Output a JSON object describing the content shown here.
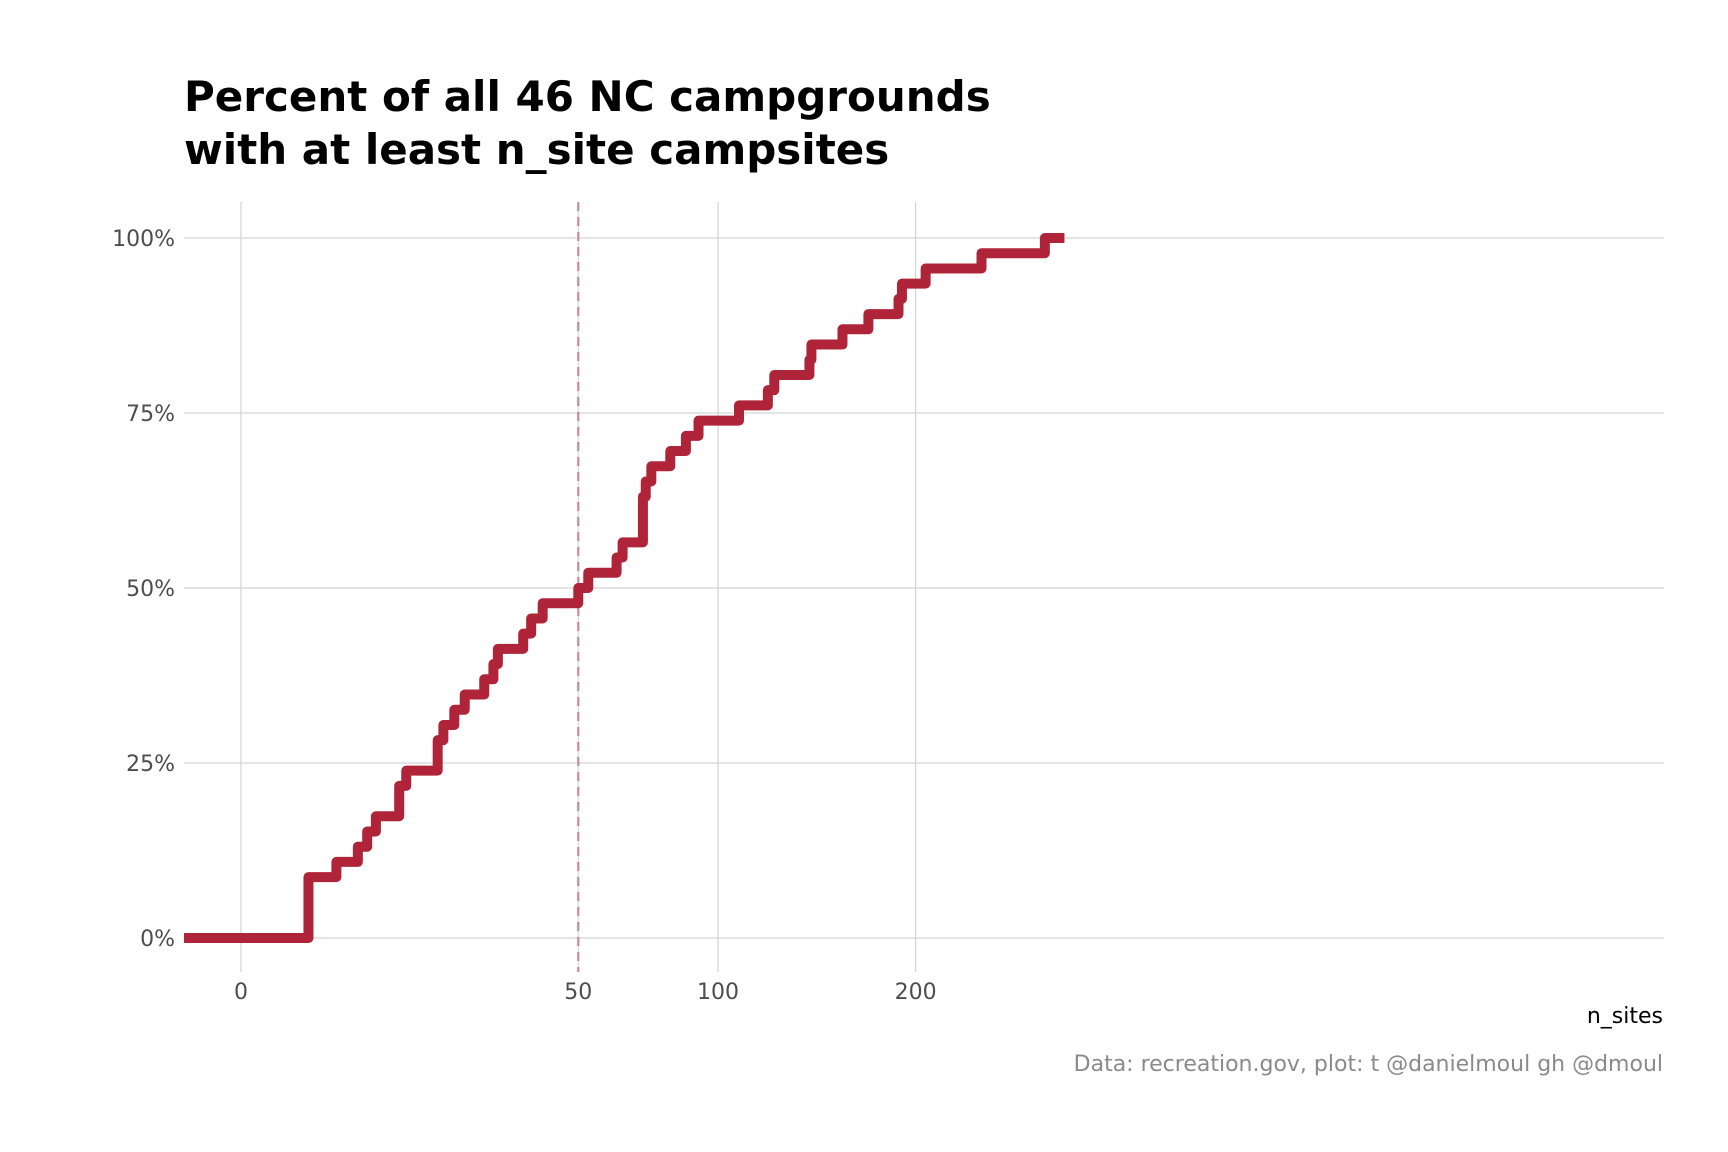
{
  "chart_data": {
    "type": "line",
    "step": true,
    "title_lines": [
      "Percent of all 46 NC campgrounds",
      "with at least n_site campsites"
    ],
    "xlabel": "n_sites",
    "ylabel": "",
    "caption": "Data: recreation.gov, plot: t @danielmoul gh @dmoul",
    "x_ticks": [
      0,
      50,
      100,
      200
    ],
    "y_ticks": [
      0,
      0.25,
      0.5,
      0.75,
      1.0
    ],
    "y_tick_labels": [
      "0%",
      "25%",
      "50%",
      "75%",
      "100%"
    ],
    "ylim": [
      -0.045,
      1.05
    ],
    "grid": true,
    "reference_line": {
      "x": 50,
      "style": "dashed"
    },
    "series": [
      {
        "color": "#b0243a",
        "x": [
          -12,
          2,
          4,
          6,
          7,
          8,
          11,
          12,
          17,
          18,
          20,
          22,
          26,
          28,
          29,
          35,
          37,
          40,
          50,
          53,
          62,
          64,
          71,
          72,
          74,
          81,
          87,
          92,
          109,
          122,
          125,
          142,
          143,
          159,
          173,
          190,
          192,
          206,
          241,
          284,
          298
        ],
        "y": [
          0,
          0.087,
          0.1087,
          0.1304,
          0.1522,
          0.1739,
          0.2174,
          0.2391,
          0.2826,
          0.3043,
          0.3261,
          0.3478,
          0.3696,
          0.3913,
          0.413,
          0.4348,
          0.4565,
          0.4783,
          0.5,
          0.5217,
          0.5435,
          0.5652,
          0.6304,
          0.6522,
          0.6739,
          0.6957,
          0.7174,
          0.7391,
          0.7609,
          0.7826,
          0.8043,
          0.8261,
          0.8478,
          0.8696,
          0.8913,
          0.913,
          0.9348,
          0.9565,
          0.9783,
          1.0,
          1.0
        ]
      }
    ]
  },
  "colors": {
    "line": "#b0243a",
    "reference_line": "#c98a95",
    "grid": "#d3d3d3"
  }
}
